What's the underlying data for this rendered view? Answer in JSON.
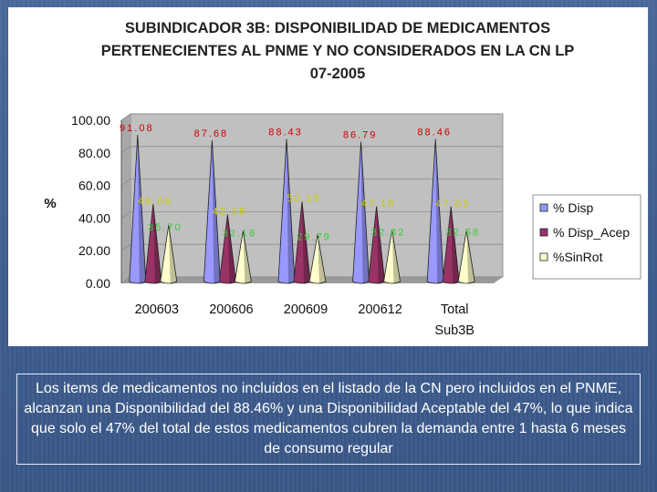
{
  "colors": {
    "plot_bg": "#c0c0c0",
    "series": [
      "#9999ff",
      "#993366",
      "#ffffcc"
    ],
    "label_colors": [
      "#cc0000",
      "#cccc00",
      "#33cc33"
    ]
  },
  "chart_data": {
    "type": "bar",
    "style": "cone",
    "title": [
      "SUBINDICADOR 3B: DISPONIBILIDAD DE MEDICAMENTOS",
      "PERTENECIENTES AL PNME Y NO CONSIDERADOS EN LA CN LP",
      "07-2005"
    ],
    "ylabel": "%",
    "ylim": [
      0,
      100
    ],
    "yticks": [
      "0.00",
      "20.00",
      "40.00",
      "60.00",
      "80.00",
      "100.00"
    ],
    "categories": [
      "200603",
      "200606",
      "200609",
      "200612",
      "Total Sub3B"
    ],
    "category_lines": [
      [
        "200603"
      ],
      [
        "200606"
      ],
      [
        "200609"
      ],
      [
        "200612"
      ],
      [
        "Total",
        "Sub3B"
      ]
    ],
    "series": [
      {
        "name": "% Disp",
        "values": [
          91.08,
          87.68,
          88.43,
          86.79,
          88.46
        ],
        "labels": [
          "91.08",
          "87.68",
          "88.43",
          "86.79",
          "88.46"
        ]
      },
      {
        "name": "% Disp_Acep",
        "values": [
          48.6,
          42.18,
          50.15,
          47.16,
          47.03
        ],
        "labels": [
          "48.60",
          "42.18",
          "50.15",
          "47.16",
          "47.03"
        ]
      },
      {
        "name": "%SinRot",
        "values": [
          35.7,
          32.16,
          29.79,
          32.82,
          32.58
        ],
        "labels": [
          "35.70",
          "32.16",
          "29.79",
          "32.82",
          "32.58"
        ]
      }
    ]
  },
  "caption": "Los items de medicamentos no incluidos en el listado de la CN pero incluidos en el PNME, alcanzan una Disponibilidad del 88.46% y una Disponibilidad Aceptable del 47%, lo que indica que solo el 47% del total de estos medicamentos cubren la demanda entre 1 hasta 6 meses de consumo regular"
}
